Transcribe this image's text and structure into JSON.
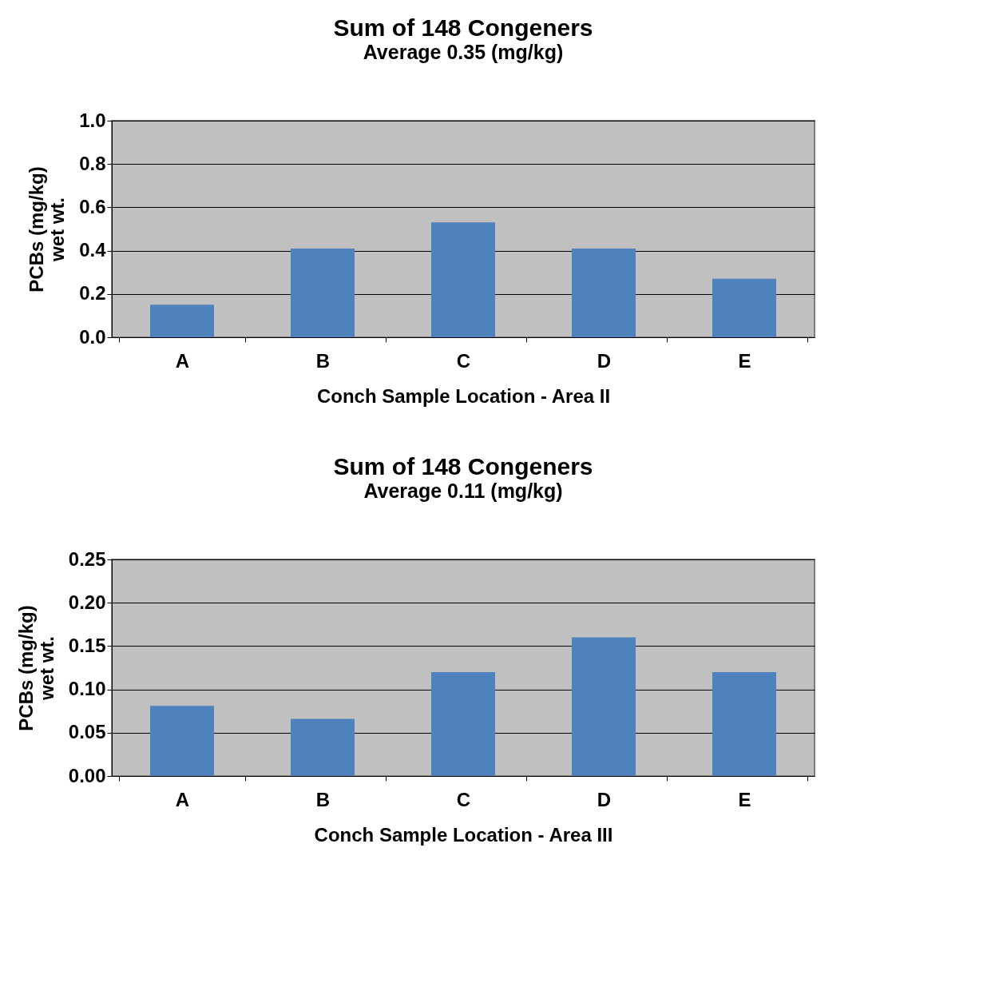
{
  "chart_data": [
    {
      "type": "bar",
      "title": "Sum of 148 Congeners",
      "subtitle": "Average 0.35 (mg/kg)",
      "xlabel": "Conch Sample Location - Area II",
      "ylabel": "PCBs (mg/kg)\nwet wt.",
      "categories": [
        "A",
        "B",
        "C",
        "D",
        "E"
      ],
      "values": [
        0.15,
        0.41,
        0.53,
        0.41,
        0.27
      ],
      "color": "#4f81bd",
      "ylim": [
        0,
        1.0
      ],
      "yticks": [
        {
          "value": 0,
          "label": "0.0"
        },
        {
          "value": 0.2,
          "label": "0.2"
        },
        {
          "value": 0.4,
          "label": "0.4"
        },
        {
          "value": 0.6,
          "label": "0.6"
        },
        {
          "value": 0.8,
          "label": "0.8"
        },
        {
          "value": 1.0,
          "label": "1.0"
        }
      ],
      "grid": "y"
    },
    {
      "type": "bar",
      "title": "Sum of 148 Congeners",
      "subtitle": "Average 0.11 (mg/kg)",
      "xlabel": "Conch Sample Location - Area III",
      "ylabel": "PCBs (mg/kg)\nwet wt.",
      "categories": [
        "A",
        "B",
        "C",
        "D",
        "E"
      ],
      "values": [
        0.081,
        0.066,
        0.12,
        0.16,
        0.12
      ],
      "color": "#4f81bd",
      "ylim": [
        0,
        0.25
      ],
      "yticks": [
        {
          "value": 0,
          "label": "0.00"
        },
        {
          "value": 0.05,
          "label": "0.05"
        },
        {
          "value": 0.1,
          "label": "0.10"
        },
        {
          "value": 0.15,
          "label": "0.15"
        },
        {
          "value": 0.2,
          "label": "0.20"
        },
        {
          "value": 0.25,
          "label": "0.25"
        }
      ],
      "grid": "y"
    }
  ]
}
